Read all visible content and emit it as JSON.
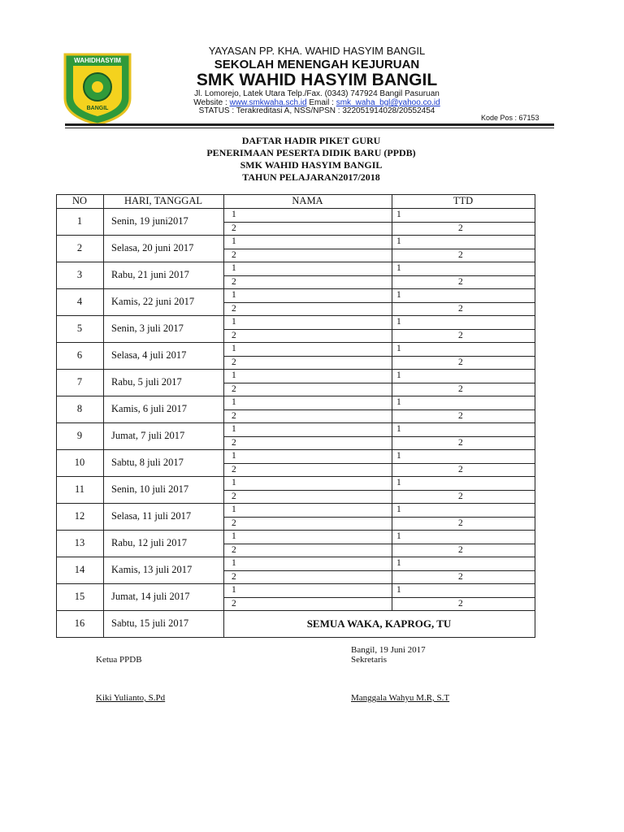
{
  "header": {
    "logo_top": "WAHIDHASYIM",
    "logo_bottom": "BANGIL",
    "foundation": "YAYASAN PP. KHA. WAHID HASYIM BANGIL",
    "school_type": "SEKOLAH MENENGAH KEJURUAN",
    "school_name": "SMK WAHID HASYIM BANGIL",
    "address": "Jl. Lomorejo, Latek Utara Telp./Fax. (0343) 747924 Bangil Pasuruan",
    "website_label": "Website :",
    "website": "www.smkwaha.sch.id",
    "email_label": "Email :",
    "email": "smk_waha_bgl@yahoo.co.id",
    "status": "STATUS : Terakreditasi A, NSS/NPSN : 322051914028/20552454",
    "postal": "Kode Pos : 67153"
  },
  "title": [
    "DAFTAR HADIR PIKET GURU",
    "PENERIMAAN PESERTA DIDIK BARU (PPDB)",
    "SMK WAHID HASYIM BANGIL",
    "TAHUN PELAJARAN2017/2018"
  ],
  "table": {
    "columns": [
      "NO",
      "HARI, TANGGAL",
      "NAMA",
      "TTD"
    ],
    "rows": [
      {
        "no": "1",
        "date": "Senin, 19 juni2017",
        "nama": [
          "1",
          "2"
        ],
        "ttd": [
          "1",
          "2"
        ]
      },
      {
        "no": "2",
        "date": "Selasa, 20 juni 2017",
        "nama": [
          "1",
          "2"
        ],
        "ttd": [
          "1",
          "2"
        ]
      },
      {
        "no": "3",
        "date": "Rabu, 21 juni 2017",
        "nama": [
          "1",
          "2"
        ],
        "ttd": [
          "1",
          "2"
        ]
      },
      {
        "no": "4",
        "date": "Kamis, 22 juni 2017",
        "nama": [
          "1",
          "2"
        ],
        "ttd": [
          "1",
          "2"
        ]
      },
      {
        "no": "5",
        "date": "Senin, 3 juli 2017",
        "nama": [
          "1",
          "2"
        ],
        "ttd": [
          "1",
          "2"
        ]
      },
      {
        "no": "6",
        "date": "Selasa, 4 juli 2017",
        "nama": [
          "1",
          "2"
        ],
        "ttd": [
          "1",
          "2"
        ]
      },
      {
        "no": "7",
        "date": "Rabu, 5 juli 2017",
        "nama": [
          "1",
          "2"
        ],
        "ttd": [
          "1",
          "2"
        ]
      },
      {
        "no": "8",
        "date": "Kamis, 6 juli 2017",
        "nama": [
          "1",
          "2"
        ],
        "ttd": [
          "1",
          "2"
        ]
      },
      {
        "no": "9",
        "date": "Jumat, 7 juli 2017",
        "nama": [
          "1",
          "2"
        ],
        "ttd": [
          "1",
          "2"
        ]
      },
      {
        "no": "10",
        "date": "Sabtu, 8 juli 2017",
        "nama": [
          "1",
          "2"
        ],
        "ttd": [
          "1",
          "2"
        ]
      },
      {
        "no": "11",
        "date": "Senin, 10 juli 2017",
        "nama": [
          "1",
          "2"
        ],
        "ttd": [
          "1",
          "2"
        ]
      },
      {
        "no": "12",
        "date": "Selasa, 11 juli 2017",
        "nama": [
          "1",
          "2"
        ],
        "ttd": [
          "1",
          "2"
        ]
      },
      {
        "no": "13",
        "date": "Rabu, 12 juli 2017",
        "nama": [
          "1",
          "2"
        ],
        "ttd": [
          "1",
          "2"
        ]
      },
      {
        "no": "14",
        "date": "Kamis, 13 juli 2017",
        "nama": [
          "1",
          "2"
        ],
        "ttd": [
          "1",
          "2"
        ]
      },
      {
        "no": "15",
        "date": "Jumat, 14 juli 2017",
        "nama": [
          "1",
          "2"
        ],
        "ttd": [
          "1",
          "2"
        ]
      },
      {
        "no": "16",
        "date": "Sabtu, 15 juli 2017",
        "note": "SEMUA WAKA, KAPROG, TU"
      }
    ]
  },
  "signatures": {
    "left": {
      "role": "Ketua PPDB",
      "name": "Kiki Yulianto, S.Pd"
    },
    "right": {
      "place_date": "Bangil, 19 Juni 2017",
      "role": "Sekretaris",
      "name": "Manggala Wahyu M.R, S.T"
    }
  }
}
